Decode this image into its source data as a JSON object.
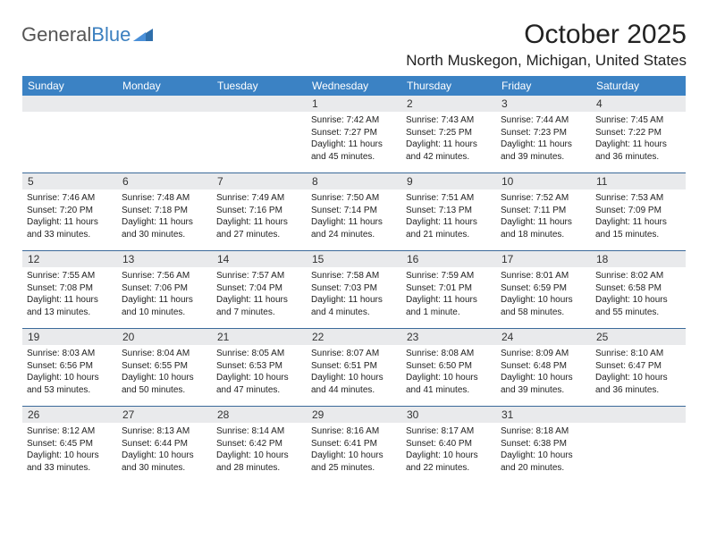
{
  "brand": {
    "part1": "General",
    "part2": "Blue"
  },
  "title": "October 2025",
  "location": "North Muskegon, Michigan, United States",
  "colors": {
    "header_bg": "#3b82c4",
    "header_text": "#ffffff",
    "daynum_bg": "#e9eaec",
    "week_border": "#3b6a9a",
    "text": "#222222",
    "brand_gray": "#555555",
    "brand_blue": "#3b7fbf"
  },
  "weekdays": [
    "Sunday",
    "Monday",
    "Tuesday",
    "Wednesday",
    "Thursday",
    "Friday",
    "Saturday"
  ],
  "weeks": [
    [
      {
        "n": "",
        "sunrise": "",
        "sunset": "",
        "daylight": ""
      },
      {
        "n": "",
        "sunrise": "",
        "sunset": "",
        "daylight": ""
      },
      {
        "n": "",
        "sunrise": "",
        "sunset": "",
        "daylight": ""
      },
      {
        "n": "1",
        "sunrise": "Sunrise: 7:42 AM",
        "sunset": "Sunset: 7:27 PM",
        "daylight": "Daylight: 11 hours and 45 minutes."
      },
      {
        "n": "2",
        "sunrise": "Sunrise: 7:43 AM",
        "sunset": "Sunset: 7:25 PM",
        "daylight": "Daylight: 11 hours and 42 minutes."
      },
      {
        "n": "3",
        "sunrise": "Sunrise: 7:44 AM",
        "sunset": "Sunset: 7:23 PM",
        "daylight": "Daylight: 11 hours and 39 minutes."
      },
      {
        "n": "4",
        "sunrise": "Sunrise: 7:45 AM",
        "sunset": "Sunset: 7:22 PM",
        "daylight": "Daylight: 11 hours and 36 minutes."
      }
    ],
    [
      {
        "n": "5",
        "sunrise": "Sunrise: 7:46 AM",
        "sunset": "Sunset: 7:20 PM",
        "daylight": "Daylight: 11 hours and 33 minutes."
      },
      {
        "n": "6",
        "sunrise": "Sunrise: 7:48 AM",
        "sunset": "Sunset: 7:18 PM",
        "daylight": "Daylight: 11 hours and 30 minutes."
      },
      {
        "n": "7",
        "sunrise": "Sunrise: 7:49 AM",
        "sunset": "Sunset: 7:16 PM",
        "daylight": "Daylight: 11 hours and 27 minutes."
      },
      {
        "n": "8",
        "sunrise": "Sunrise: 7:50 AM",
        "sunset": "Sunset: 7:14 PM",
        "daylight": "Daylight: 11 hours and 24 minutes."
      },
      {
        "n": "9",
        "sunrise": "Sunrise: 7:51 AM",
        "sunset": "Sunset: 7:13 PM",
        "daylight": "Daylight: 11 hours and 21 minutes."
      },
      {
        "n": "10",
        "sunrise": "Sunrise: 7:52 AM",
        "sunset": "Sunset: 7:11 PM",
        "daylight": "Daylight: 11 hours and 18 minutes."
      },
      {
        "n": "11",
        "sunrise": "Sunrise: 7:53 AM",
        "sunset": "Sunset: 7:09 PM",
        "daylight": "Daylight: 11 hours and 15 minutes."
      }
    ],
    [
      {
        "n": "12",
        "sunrise": "Sunrise: 7:55 AM",
        "sunset": "Sunset: 7:08 PM",
        "daylight": "Daylight: 11 hours and 13 minutes."
      },
      {
        "n": "13",
        "sunrise": "Sunrise: 7:56 AM",
        "sunset": "Sunset: 7:06 PM",
        "daylight": "Daylight: 11 hours and 10 minutes."
      },
      {
        "n": "14",
        "sunrise": "Sunrise: 7:57 AM",
        "sunset": "Sunset: 7:04 PM",
        "daylight": "Daylight: 11 hours and 7 minutes."
      },
      {
        "n": "15",
        "sunrise": "Sunrise: 7:58 AM",
        "sunset": "Sunset: 7:03 PM",
        "daylight": "Daylight: 11 hours and 4 minutes."
      },
      {
        "n": "16",
        "sunrise": "Sunrise: 7:59 AM",
        "sunset": "Sunset: 7:01 PM",
        "daylight": "Daylight: 11 hours and 1 minute."
      },
      {
        "n": "17",
        "sunrise": "Sunrise: 8:01 AM",
        "sunset": "Sunset: 6:59 PM",
        "daylight": "Daylight: 10 hours and 58 minutes."
      },
      {
        "n": "18",
        "sunrise": "Sunrise: 8:02 AM",
        "sunset": "Sunset: 6:58 PM",
        "daylight": "Daylight: 10 hours and 55 minutes."
      }
    ],
    [
      {
        "n": "19",
        "sunrise": "Sunrise: 8:03 AM",
        "sunset": "Sunset: 6:56 PM",
        "daylight": "Daylight: 10 hours and 53 minutes."
      },
      {
        "n": "20",
        "sunrise": "Sunrise: 8:04 AM",
        "sunset": "Sunset: 6:55 PM",
        "daylight": "Daylight: 10 hours and 50 minutes."
      },
      {
        "n": "21",
        "sunrise": "Sunrise: 8:05 AM",
        "sunset": "Sunset: 6:53 PM",
        "daylight": "Daylight: 10 hours and 47 minutes."
      },
      {
        "n": "22",
        "sunrise": "Sunrise: 8:07 AM",
        "sunset": "Sunset: 6:51 PM",
        "daylight": "Daylight: 10 hours and 44 minutes."
      },
      {
        "n": "23",
        "sunrise": "Sunrise: 8:08 AM",
        "sunset": "Sunset: 6:50 PM",
        "daylight": "Daylight: 10 hours and 41 minutes."
      },
      {
        "n": "24",
        "sunrise": "Sunrise: 8:09 AM",
        "sunset": "Sunset: 6:48 PM",
        "daylight": "Daylight: 10 hours and 39 minutes."
      },
      {
        "n": "25",
        "sunrise": "Sunrise: 8:10 AM",
        "sunset": "Sunset: 6:47 PM",
        "daylight": "Daylight: 10 hours and 36 minutes."
      }
    ],
    [
      {
        "n": "26",
        "sunrise": "Sunrise: 8:12 AM",
        "sunset": "Sunset: 6:45 PM",
        "daylight": "Daylight: 10 hours and 33 minutes."
      },
      {
        "n": "27",
        "sunrise": "Sunrise: 8:13 AM",
        "sunset": "Sunset: 6:44 PM",
        "daylight": "Daylight: 10 hours and 30 minutes."
      },
      {
        "n": "28",
        "sunrise": "Sunrise: 8:14 AM",
        "sunset": "Sunset: 6:42 PM",
        "daylight": "Daylight: 10 hours and 28 minutes."
      },
      {
        "n": "29",
        "sunrise": "Sunrise: 8:16 AM",
        "sunset": "Sunset: 6:41 PM",
        "daylight": "Daylight: 10 hours and 25 minutes."
      },
      {
        "n": "30",
        "sunrise": "Sunrise: 8:17 AM",
        "sunset": "Sunset: 6:40 PM",
        "daylight": "Daylight: 10 hours and 22 minutes."
      },
      {
        "n": "31",
        "sunrise": "Sunrise: 8:18 AM",
        "sunset": "Sunset: 6:38 PM",
        "daylight": "Daylight: 10 hours and 20 minutes."
      },
      {
        "n": "",
        "sunrise": "",
        "sunset": "",
        "daylight": ""
      }
    ]
  ]
}
